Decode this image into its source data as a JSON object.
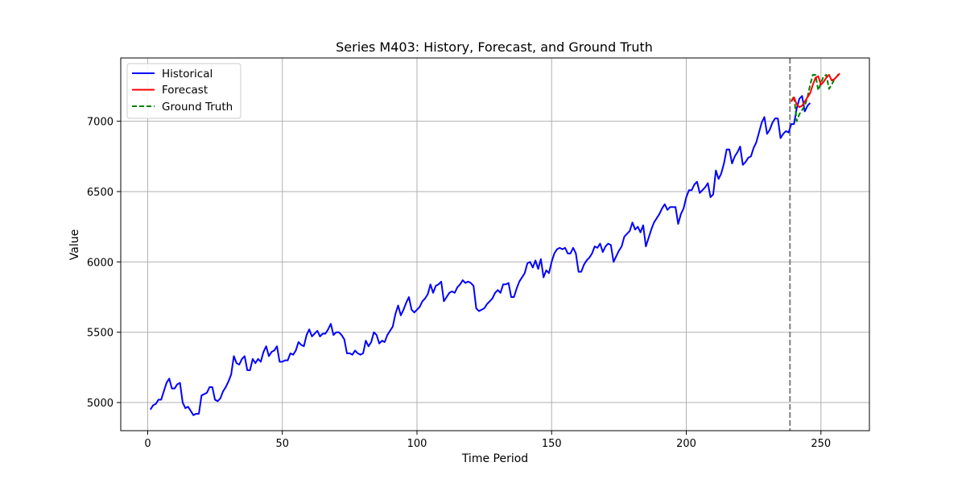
{
  "chart_data": {
    "type": "line",
    "title": "Series M403: History, Forecast, and Ground Truth",
    "xlabel": "Time Period",
    "ylabel": "Value",
    "xlim": [
      -10,
      268
    ],
    "ylim": [
      4800,
      7450
    ],
    "xticks": [
      0,
      50,
      100,
      150,
      200,
      250
    ],
    "yticks": [
      5000,
      5500,
      6000,
      6500,
      7000
    ],
    "grid": true,
    "legend": {
      "placement": "upper-left"
    },
    "forecast_start_marker": 238.5,
    "series": [
      {
        "name": "Historical",
        "color": "#0000ff",
        "style": "solid",
        "x_start": 1,
        "values": [
          4950,
          4980,
          4990,
          5020,
          5020,
          5080,
          5140,
          5170,
          5100,
          5100,
          5130,
          5140,
          5000,
          4960,
          4970,
          4940,
          4910,
          4920,
          4920,
          5050,
          5060,
          5070,
          5110,
          5110,
          5020,
          5010,
          5030,
          5080,
          5110,
          5150,
          5200,
          5330,
          5280,
          5270,
          5310,
          5330,
          5230,
          5230,
          5310,
          5280,
          5310,
          5290,
          5360,
          5400,
          5330,
          5360,
          5370,
          5400,
          5290,
          5290,
          5300,
          5300,
          5350,
          5340,
          5370,
          5430,
          5410,
          5400,
          5480,
          5520,
          5470,
          5490,
          5510,
          5470,
          5490,
          5490,
          5520,
          5560,
          5480,
          5500,
          5500,
          5480,
          5450,
          5350,
          5350,
          5340,
          5370,
          5350,
          5340,
          5350,
          5440,
          5400,
          5430,
          5500,
          5480,
          5420,
          5440,
          5430,
          5480,
          5510,
          5540,
          5630,
          5690,
          5620,
          5660,
          5710,
          5750,
          5660,
          5640,
          5660,
          5680,
          5720,
          5740,
          5770,
          5840,
          5780,
          5830,
          5840,
          5860,
          5720,
          5750,
          5780,
          5790,
          5780,
          5820,
          5840,
          5870,
          5850,
          5860,
          5850,
          5830,
          5670,
          5650,
          5660,
          5670,
          5700,
          5720,
          5740,
          5780,
          5800,
          5780,
          5840,
          5840,
          5850,
          5750,
          5750,
          5810,
          5860,
          5890,
          5920,
          5990,
          6000,
          5960,
          6010,
          5950,
          6020,
          5890,
          5940,
          5920,
          6000,
          6060,
          6090,
          6100,
          6090,
          6100,
          6060,
          6060,
          6100,
          6060,
          5930,
          5930,
          5980,
          6010,
          6030,
          6060,
          6110,
          6100,
          6130,
          6070,
          6110,
          6130,
          6120,
          6000,
          6040,
          6080,
          6110,
          6180,
          6200,
          6220,
          6280,
          6230,
          6250,
          6210,
          6260,
          6110,
          6170,
          6230,
          6280,
          6310,
          6340,
          6380,
          6410,
          6370,
          6390,
          6390,
          6390,
          6270,
          6340,
          6380,
          6460,
          6510,
          6510,
          6550,
          6570,
          6490,
          6510,
          6530,
          6560,
          6460,
          6480,
          6650,
          6590,
          6630,
          6700,
          6800,
          6800,
          6700,
          6750,
          6780,
          6820,
          6690,
          6710,
          6740,
          6750,
          6810,
          6850,
          6920,
          6990,
          7030,
          6910,
          6940,
          6990,
          7020,
          7020,
          6880,
          6910,
          6930,
          6920,
          6980,
          6980,
          7090,
          7160,
          7180,
          7070,
          7110,
          7130
        ]
      },
      {
        "name": "Forecast",
        "color": "#ff0000",
        "style": "solid",
        "x_start": 239,
        "values": [
          7140,
          7170,
          7120,
          7100,
          7110,
          7140,
          7170,
          7200,
          7260,
          7310,
          7320,
          7260,
          7280,
          7310,
          7330,
          7290,
          7300,
          7320,
          7340
        ]
      },
      {
        "name": "Ground Truth",
        "color": "#008000",
        "style": "dashed",
        "x_start": 239,
        "values": [
          7140,
          7180,
          7000,
          7050,
          7080,
          7110,
          7170,
          7260,
          7330,
          7330,
          7220,
          7270,
          7320,
          7330,
          7230,
          7260,
          7300,
          7320,
          7350
        ]
      }
    ]
  }
}
